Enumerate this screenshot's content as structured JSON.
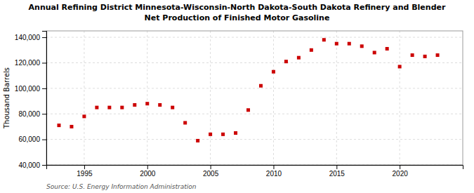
{
  "chart_data": {
    "type": "scatter",
    "title": "Annual Refining District Minnesota-Wisconsin-North Dakota-South Dakota Refinery and Blender",
    "subtitle": "Net Production of Finished Motor Gasoline",
    "ylabel": "Thousand Barrels",
    "source": "Source: U.S. Energy Information Administration",
    "x": [
      1993,
      1994,
      1995,
      1996,
      1997,
      1998,
      1999,
      2000,
      2001,
      2002,
      2003,
      2004,
      2005,
      2006,
      2007,
      2008,
      2009,
      2010,
      2011,
      2012,
      2013,
      2014,
      2015,
      2016,
      2017,
      2018,
      2019,
      2020,
      2021,
      2022,
      2023
    ],
    "values": [
      71000,
      70000,
      78000,
      85000,
      85000,
      85000,
      87000,
      88000,
      87000,
      85000,
      73000,
      59000,
      64000,
      64000,
      65000,
      83000,
      102000,
      113000,
      121000,
      124000,
      130000,
      138000,
      135000,
      135000,
      133000,
      128000,
      131000,
      117000,
      126000,
      125000,
      126000
    ],
    "color": "#cc0000",
    "marker": "square",
    "xlim": [
      1992,
      2025
    ],
    "xticks": [
      1995,
      2000,
      2005,
      2010,
      2015,
      2020
    ],
    "ylim": [
      40000,
      145000
    ],
    "yticks": [
      {
        "value": 40000,
        "label": "40,000"
      },
      {
        "value": 60000,
        "label": "60,000"
      },
      {
        "value": 80000,
        "label": "80,000"
      },
      {
        "value": 100000,
        "label": "100,000"
      },
      {
        "value": 120000,
        "label": "120,000"
      },
      {
        "value": 140000,
        "label": "140,000"
      }
    ],
    "grid": true
  }
}
